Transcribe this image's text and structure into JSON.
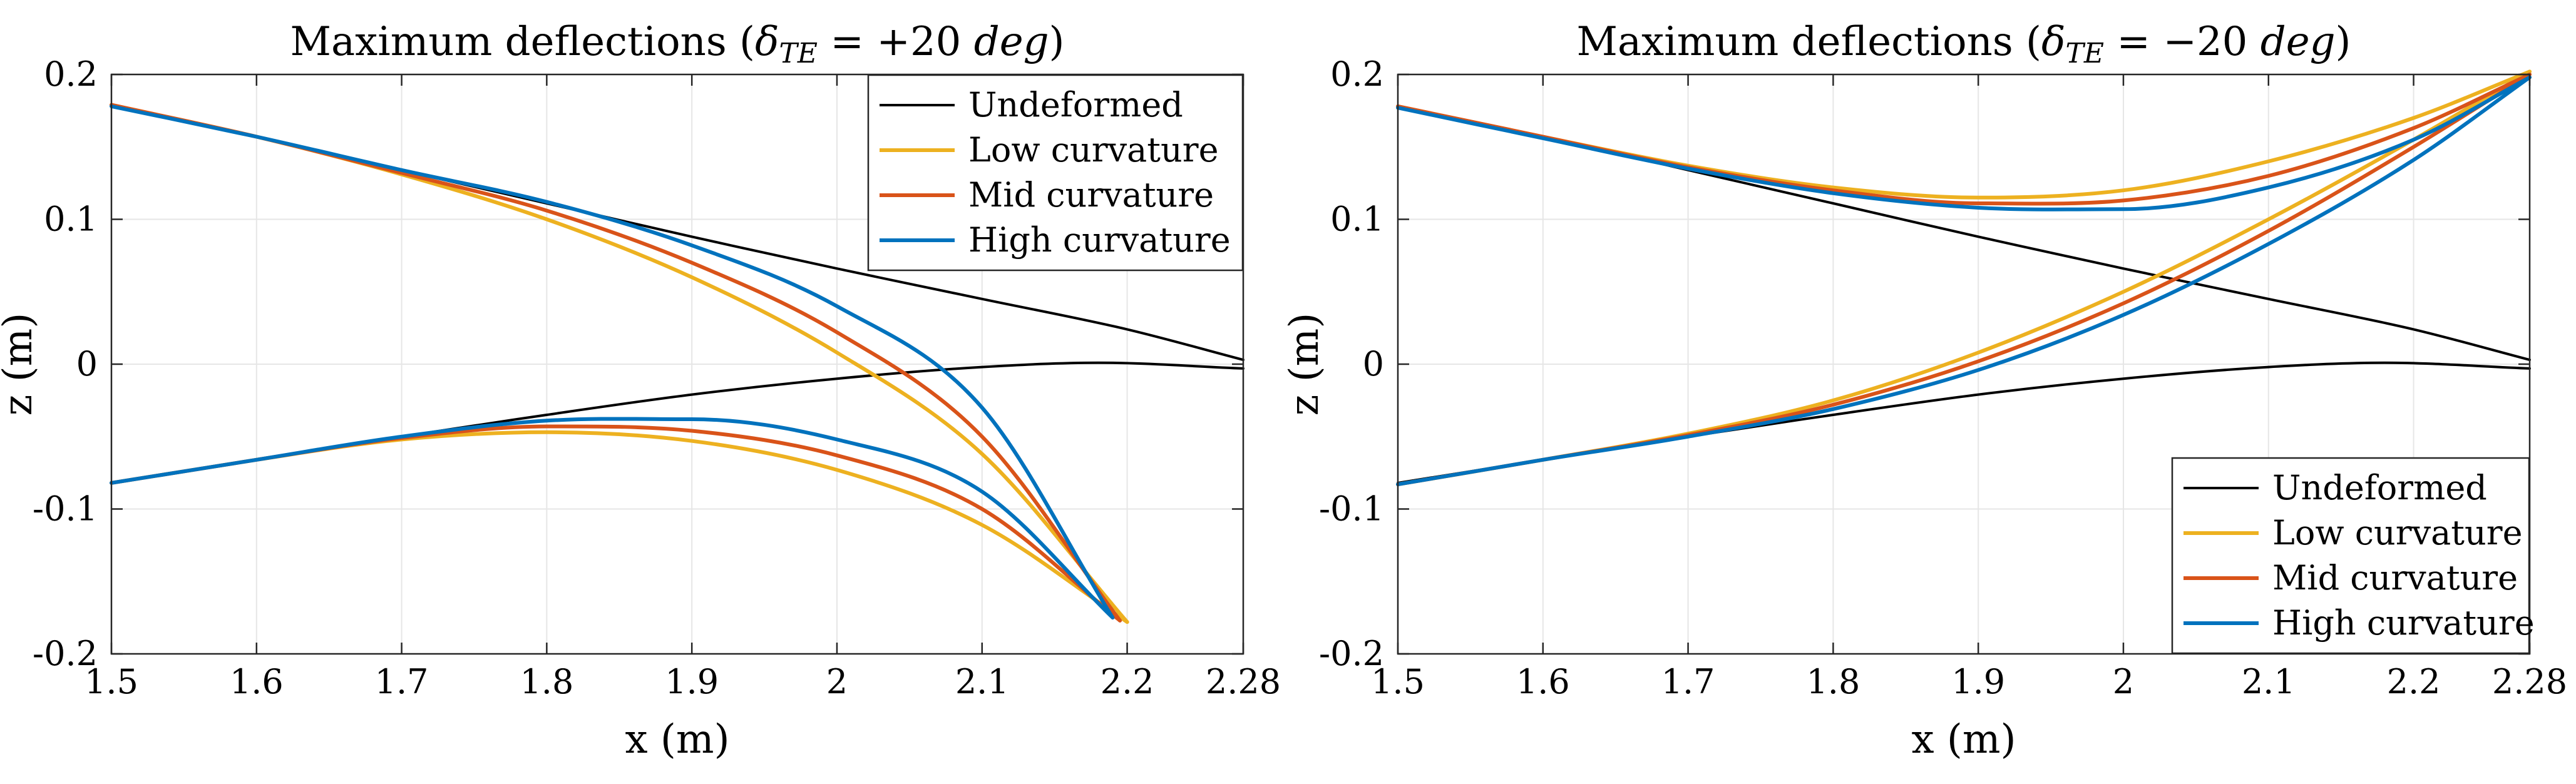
{
  "chart_data": [
    {
      "type": "line",
      "title_prefix": "Maximum deflections (",
      "title_math": "δ",
      "title_sub": "TE",
      "title_eq": " = +20 ",
      "title_unit": "deg",
      "title_suffix": ")",
      "xlabel": "x (m)",
      "ylabel": "z (m)",
      "xlim": [
        1.5,
        2.28
      ],
      "ylim": [
        -0.2,
        0.2
      ],
      "xticks": [
        1.5,
        1.6,
        1.7,
        1.8,
        1.9,
        2.0,
        2.1,
        2.2,
        2.28
      ],
      "xtick_labels": [
        "1.5",
        "1.6",
        "1.7",
        "1.8",
        "1.9",
        "2",
        "2.1",
        "2.2",
        "2.28"
      ],
      "yticks": [
        0.2,
        0.1,
        0.0,
        -0.1,
        -0.2
      ],
      "ytick_labels": [
        "0.2",
        "0.1",
        "0",
        "-0.1",
        "-0.2"
      ],
      "grid": true,
      "legend_position": "top-right",
      "series": [
        {
          "name": "Undeformed",
          "color": "#000000",
          "upper": [
            [
              1.5,
              0.178
            ],
            [
              1.6,
              0.157
            ],
            [
              1.7,
              0.134
            ],
            [
              1.8,
              0.111
            ],
            [
              1.9,
              0.088
            ],
            [
              2.0,
              0.066
            ],
            [
              2.1,
              0.045
            ],
            [
              2.2,
              0.024
            ],
            [
              2.28,
              0.003
            ]
          ],
          "lower": [
            [
              1.5,
              -0.082
            ],
            [
              1.6,
              -0.066
            ],
            [
              1.7,
              -0.05
            ],
            [
              1.8,
              -0.035
            ],
            [
              1.9,
              -0.021
            ],
            [
              2.0,
              -0.01
            ],
            [
              2.1,
              -0.002
            ],
            [
              2.18,
              0.001
            ],
            [
              2.28,
              -0.003
            ]
          ]
        },
        {
          "name": "Low curvature",
          "color": "#EDB120",
          "upper": [
            [
              1.5,
              0.179
            ],
            [
              1.6,
              0.157
            ],
            [
              1.7,
              0.131
            ],
            [
              1.8,
              0.1
            ],
            [
              1.9,
              0.06
            ],
            [
              2.0,
              0.008
            ],
            [
              2.1,
              -0.062
            ],
            [
              2.2,
              -0.178
            ]
          ],
          "lower": [
            [
              1.5,
              -0.082
            ],
            [
              1.6,
              -0.066
            ],
            [
              1.7,
              -0.052
            ],
            [
              1.8,
              -0.047
            ],
            [
              1.9,
              -0.053
            ],
            [
              2.0,
              -0.073
            ],
            [
              2.1,
              -0.111
            ],
            [
              2.2,
              -0.178
            ]
          ]
        },
        {
          "name": "Mid curvature",
          "color": "#D95319",
          "upper": [
            [
              1.5,
              0.179
            ],
            [
              1.6,
              0.157
            ],
            [
              1.7,
              0.132
            ],
            [
              1.8,
              0.106
            ],
            [
              1.9,
              0.07
            ],
            [
              2.0,
              0.022
            ],
            [
              2.1,
              -0.05
            ],
            [
              2.195,
              -0.177
            ]
          ],
          "lower": [
            [
              1.5,
              -0.082
            ],
            [
              1.6,
              -0.066
            ],
            [
              1.7,
              -0.051
            ],
            [
              1.8,
              -0.043
            ],
            [
              1.9,
              -0.046
            ],
            [
              2.0,
              -0.063
            ],
            [
              2.1,
              -0.1
            ],
            [
              2.195,
              -0.177
            ]
          ]
        },
        {
          "name": "High curvature",
          "color": "#0072BD",
          "upper": [
            [
              1.5,
              0.178
            ],
            [
              1.6,
              0.157
            ],
            [
              1.7,
              0.134
            ],
            [
              1.8,
              0.112
            ],
            [
              1.9,
              0.082
            ],
            [
              2.0,
              0.04
            ],
            [
              2.1,
              -0.03
            ],
            [
              2.19,
              -0.175
            ]
          ],
          "lower": [
            [
              1.5,
              -0.082
            ],
            [
              1.6,
              -0.066
            ],
            [
              1.7,
              -0.05
            ],
            [
              1.8,
              -0.039
            ],
            [
              1.9,
              -0.038
            ],
            [
              2.0,
              -0.052
            ],
            [
              2.1,
              -0.088
            ],
            [
              2.19,
              -0.175
            ]
          ]
        }
      ]
    },
    {
      "type": "line",
      "title_prefix": "Maximum deflections (",
      "title_math": "δ",
      "title_sub": "TE",
      "title_eq": " = −20 ",
      "title_unit": "deg",
      "title_suffix": ")",
      "xlabel": "x (m)",
      "ylabel": "z (m)",
      "xlim": [
        1.5,
        2.28
      ],
      "ylim": [
        -0.2,
        0.2
      ],
      "xticks": [
        1.5,
        1.6,
        1.7,
        1.8,
        1.9,
        2.0,
        2.1,
        2.2,
        2.28
      ],
      "xtick_labels": [
        "1.5",
        "1.6",
        "1.7",
        "1.8",
        "1.9",
        "2",
        "2.1",
        "2.2",
        "2.28"
      ],
      "yticks": [
        0.2,
        0.1,
        0.0,
        -0.1,
        -0.2
      ],
      "ytick_labels": [
        "0.2",
        "0.1",
        "0",
        "-0.1",
        "-0.2"
      ],
      "grid": true,
      "legend_position": "bottom-right",
      "series": [
        {
          "name": "Undeformed",
          "color": "#000000",
          "upper": [
            [
              1.5,
              0.178
            ],
            [
              1.6,
              0.157
            ],
            [
              1.7,
              0.134
            ],
            [
              1.8,
              0.111
            ],
            [
              1.9,
              0.088
            ],
            [
              2.0,
              0.066
            ],
            [
              2.1,
              0.045
            ],
            [
              2.2,
              0.024
            ],
            [
              2.28,
              0.003
            ]
          ],
          "lower": [
            [
              1.5,
              -0.082
            ],
            [
              1.6,
              -0.066
            ],
            [
              1.7,
              -0.05
            ],
            [
              1.8,
              -0.035
            ],
            [
              1.9,
              -0.021
            ],
            [
              2.0,
              -0.01
            ],
            [
              2.1,
              -0.002
            ],
            [
              2.18,
              0.001
            ],
            [
              2.28,
              -0.003
            ]
          ]
        },
        {
          "name": "Low curvature",
          "color": "#EDB120",
          "upper": [
            [
              1.5,
              0.178
            ],
            [
              1.6,
              0.157
            ],
            [
              1.7,
              0.137
            ],
            [
              1.8,
              0.122
            ],
            [
              1.9,
              0.115
            ],
            [
              2.0,
              0.12
            ],
            [
              2.1,
              0.14
            ],
            [
              2.2,
              0.17
            ],
            [
              2.28,
              0.202
            ]
          ],
          "lower": [
            [
              1.5,
              -0.083
            ],
            [
              1.6,
              -0.066
            ],
            [
              1.7,
              -0.048
            ],
            [
              1.8,
              -0.025
            ],
            [
              1.9,
              0.008
            ],
            [
              2.0,
              0.05
            ],
            [
              2.1,
              0.1
            ],
            [
              2.2,
              0.155
            ],
            [
              2.28,
              0.202
            ]
          ]
        },
        {
          "name": "Mid curvature",
          "color": "#D95319",
          "upper": [
            [
              1.5,
              0.178
            ],
            [
              1.6,
              0.157
            ],
            [
              1.7,
              0.136
            ],
            [
              1.8,
              0.12
            ],
            [
              1.9,
              0.111
            ],
            [
              2.0,
              0.113
            ],
            [
              2.1,
              0.13
            ],
            [
              2.2,
              0.163
            ],
            [
              2.28,
              0.2
            ]
          ],
          "lower": [
            [
              1.5,
              -0.083
            ],
            [
              1.6,
              -0.066
            ],
            [
              1.7,
              -0.049
            ],
            [
              1.8,
              -0.028
            ],
            [
              1.9,
              0.002
            ],
            [
              2.0,
              0.042
            ],
            [
              2.1,
              0.092
            ],
            [
              2.2,
              0.15
            ],
            [
              2.28,
              0.2
            ]
          ]
        },
        {
          "name": "High curvature",
          "color": "#0072BD",
          "upper": [
            [
              1.5,
              0.177
            ],
            [
              1.6,
              0.156
            ],
            [
              1.7,
              0.135
            ],
            [
              1.8,
              0.118
            ],
            [
              1.9,
              0.108
            ],
            [
              2.0,
              0.107
            ],
            [
              2.1,
              0.122
            ],
            [
              2.2,
              0.155
            ],
            [
              2.28,
              0.198
            ]
          ],
          "lower": [
            [
              1.5,
              -0.083
            ],
            [
              1.6,
              -0.066
            ],
            [
              1.7,
              -0.05
            ],
            [
              1.8,
              -0.031
            ],
            [
              1.9,
              -0.004
            ],
            [
              2.0,
              0.034
            ],
            [
              2.1,
              0.083
            ],
            [
              2.2,
              0.141
            ],
            [
              2.28,
              0.198
            ]
          ]
        }
      ]
    }
  ]
}
